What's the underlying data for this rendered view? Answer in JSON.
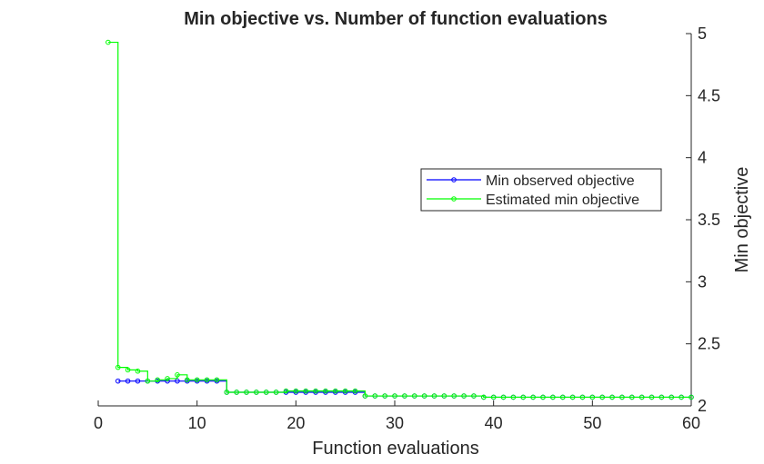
{
  "chart_data": {
    "type": "line",
    "title": "Min objective vs. Number of function evaluations",
    "xlabel": "Function evaluations",
    "ylabel": "Min objective",
    "xlim": [
      0,
      60
    ],
    "ylim": [
      2,
      5
    ],
    "x_ticks": [
      "0",
      "10",
      "20",
      "30",
      "40",
      "50",
      "60"
    ],
    "x_tick_values": [
      0,
      10,
      20,
      30,
      40,
      50,
      60
    ],
    "y_ticks": [
      "2",
      "2.5",
      "3",
      "3.5",
      "4",
      "4.5",
      "5"
    ],
    "y_tick_values": [
      2,
      2.5,
      3,
      3.5,
      4,
      4.5,
      5
    ],
    "y_axis_side": "right",
    "grid": false,
    "legend_position": "right",
    "series": [
      {
        "name": "Min observed objective",
        "color": "#0000ff",
        "marker": "circle",
        "x": [
          2,
          3,
          4,
          5,
          6,
          7,
          8,
          9,
          10,
          11,
          12,
          13,
          14,
          15,
          16,
          17,
          18,
          19,
          20,
          21,
          22,
          23,
          24,
          25,
          26,
          27,
          28,
          29,
          30,
          31,
          32,
          33,
          34,
          35,
          36,
          37,
          38,
          39,
          40,
          41,
          42,
          43,
          44,
          45,
          46,
          47,
          48,
          49,
          50,
          51,
          52,
          53,
          54,
          55,
          56,
          57,
          58,
          59,
          60
        ],
        "values": [
          2.2,
          2.2,
          2.2,
          2.2,
          2.2,
          2.2,
          2.2,
          2.2,
          2.2,
          2.2,
          2.2,
          2.11,
          2.11,
          2.11,
          2.11,
          2.11,
          2.11,
          2.11,
          2.11,
          2.11,
          2.11,
          2.11,
          2.11,
          2.11,
          2.11,
          2.08,
          2.08,
          2.08,
          2.08,
          2.08,
          2.08,
          2.08,
          2.08,
          2.08,
          2.08,
          2.08,
          2.08,
          2.07,
          2.07,
          2.07,
          2.07,
          2.07,
          2.07,
          2.07,
          2.07,
          2.07,
          2.07,
          2.07,
          2.07,
          2.07,
          2.07,
          2.07,
          2.07,
          2.07,
          2.07,
          2.07,
          2.07,
          2.07,
          2.07
        ]
      },
      {
        "name": "Estimated min objective",
        "color": "#00ff00",
        "marker": "circle",
        "x": [
          1,
          2,
          3,
          4,
          5,
          6,
          7,
          8,
          9,
          10,
          11,
          12,
          13,
          14,
          15,
          16,
          17,
          18,
          19,
          20,
          21,
          22,
          23,
          24,
          25,
          26,
          27,
          28,
          29,
          30,
          31,
          32,
          33,
          34,
          35,
          36,
          37,
          38,
          39,
          40,
          41,
          42,
          43,
          44,
          45,
          46,
          47,
          48,
          49,
          50,
          51,
          52,
          53,
          54,
          55,
          56,
          57,
          58,
          59,
          60
        ],
        "values": [
          4.93,
          2.31,
          2.29,
          2.28,
          2.2,
          2.21,
          2.22,
          2.25,
          2.21,
          2.21,
          2.21,
          2.21,
          2.11,
          2.11,
          2.11,
          2.11,
          2.11,
          2.11,
          2.12,
          2.12,
          2.12,
          2.12,
          2.12,
          2.12,
          2.12,
          2.12,
          2.08,
          2.08,
          2.08,
          2.08,
          2.08,
          2.08,
          2.08,
          2.08,
          2.08,
          2.08,
          2.08,
          2.08,
          2.07,
          2.07,
          2.07,
          2.07,
          2.07,
          2.07,
          2.07,
          2.07,
          2.07,
          2.07,
          2.07,
          2.07,
          2.07,
          2.07,
          2.07,
          2.07,
          2.07,
          2.07,
          2.07,
          2.07,
          2.07,
          2.07
        ]
      }
    ]
  }
}
